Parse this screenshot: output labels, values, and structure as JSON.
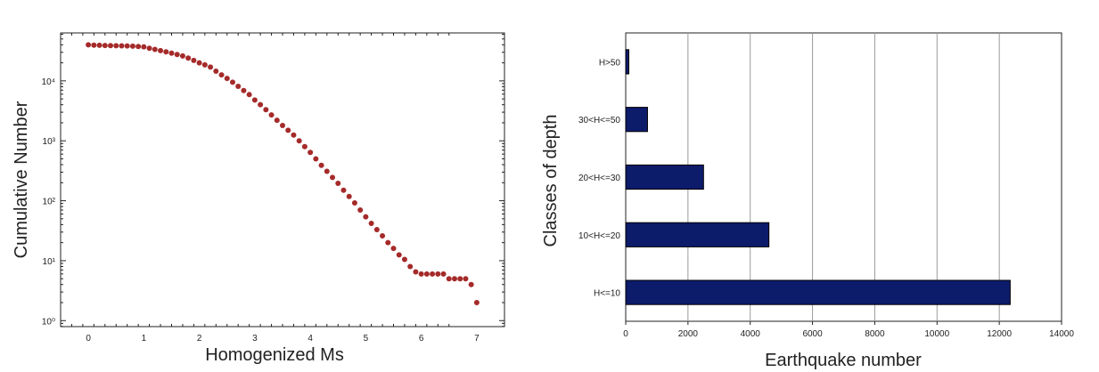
{
  "chart_data": [
    {
      "type": "scatter",
      "xlabel": "Homogenized Ms",
      "ylabel": "Cumulative Number",
      "xlim": [
        -0.5,
        7.5
      ],
      "ylim_log10": [
        -0.1,
        4.8
      ],
      "y_scale": "log",
      "xticks": [
        "0",
        "1",
        "2",
        "3",
        "4",
        "5",
        "6",
        "7"
      ],
      "ytick_labels": [
        "10⁰",
        "10¹",
        "10²",
        "10³",
        "10⁴"
      ],
      "grid": false,
      "marker_color": "#a52a2a",
      "points": [
        {
          "x": 0.0,
          "y": 40000
        },
        {
          "x": 0.1,
          "y": 39500
        },
        {
          "x": 0.2,
          "y": 39200
        },
        {
          "x": 0.3,
          "y": 39000
        },
        {
          "x": 0.4,
          "y": 38800
        },
        {
          "x": 0.5,
          "y": 38600
        },
        {
          "x": 0.6,
          "y": 38400
        },
        {
          "x": 0.7,
          "y": 38200
        },
        {
          "x": 0.8,
          "y": 38000
        },
        {
          "x": 0.9,
          "y": 37500
        },
        {
          "x": 1.0,
          "y": 37000
        },
        {
          "x": 1.1,
          "y": 35000
        },
        {
          "x": 1.2,
          "y": 33500
        },
        {
          "x": 1.3,
          "y": 32000
        },
        {
          "x": 1.4,
          "y": 30500
        },
        {
          "x": 1.5,
          "y": 29000
        },
        {
          "x": 1.6,
          "y": 27500
        },
        {
          "x": 1.7,
          "y": 26000
        },
        {
          "x": 1.8,
          "y": 24000
        },
        {
          "x": 1.9,
          "y": 22000
        },
        {
          "x": 2.0,
          "y": 20000
        },
        {
          "x": 2.1,
          "y": 18500
        },
        {
          "x": 2.2,
          "y": 17000
        },
        {
          "x": 2.3,
          "y": 14500
        },
        {
          "x": 2.4,
          "y": 12600
        },
        {
          "x": 2.5,
          "y": 11000
        },
        {
          "x": 2.6,
          "y": 9500
        },
        {
          "x": 2.7,
          "y": 8100
        },
        {
          "x": 2.8,
          "y": 6900
        },
        {
          "x": 2.9,
          "y": 5900
        },
        {
          "x": 3.0,
          "y": 4800
        },
        {
          "x": 3.1,
          "y": 4000
        },
        {
          "x": 3.2,
          "y": 3300
        },
        {
          "x": 3.3,
          "y": 2700
        },
        {
          "x": 3.4,
          "y": 2200
        },
        {
          "x": 3.5,
          "y": 1800
        },
        {
          "x": 3.6,
          "y": 1500
        },
        {
          "x": 3.7,
          "y": 1250
        },
        {
          "x": 3.8,
          "y": 1000
        },
        {
          "x": 3.9,
          "y": 800
        },
        {
          "x": 4.0,
          "y": 640
        },
        {
          "x": 4.1,
          "y": 500
        },
        {
          "x": 4.2,
          "y": 390
        },
        {
          "x": 4.3,
          "y": 310
        },
        {
          "x": 4.4,
          "y": 245
        },
        {
          "x": 4.5,
          "y": 195
        },
        {
          "x": 4.6,
          "y": 150
        },
        {
          "x": 4.7,
          "y": 118
        },
        {
          "x": 4.8,
          "y": 92
        },
        {
          "x": 4.9,
          "y": 70
        },
        {
          "x": 5.0,
          "y": 54
        },
        {
          "x": 5.1,
          "y": 42
        },
        {
          "x": 5.2,
          "y": 33
        },
        {
          "x": 5.3,
          "y": 26
        },
        {
          "x": 5.4,
          "y": 20
        },
        {
          "x": 5.5,
          "y": 16
        },
        {
          "x": 5.6,
          "y": 12.5
        },
        {
          "x": 5.7,
          "y": 10.5
        },
        {
          "x": 5.8,
          "y": 8
        },
        {
          "x": 5.9,
          "y": 6.5
        },
        {
          "x": 6.0,
          "y": 6
        },
        {
          "x": 6.1,
          "y": 6
        },
        {
          "x": 6.2,
          "y": 6
        },
        {
          "x": 6.3,
          "y": 6
        },
        {
          "x": 6.4,
          "y": 6
        },
        {
          "x": 6.5,
          "y": 5
        },
        {
          "x": 6.6,
          "y": 5
        },
        {
          "x": 6.7,
          "y": 5
        },
        {
          "x": 6.8,
          "y": 5
        },
        {
          "x": 6.9,
          "y": 4
        },
        {
          "x": 7.0,
          "y": 2
        }
      ]
    },
    {
      "type": "bar",
      "orientation": "horizontal",
      "xlabel": "Earthquake number",
      "ylabel": "Classes of depth",
      "xlim": [
        0,
        14000
      ],
      "xticks": [
        "0",
        "2000",
        "4000",
        "6000",
        "8000",
        "10000",
        "12000",
        "14000"
      ],
      "categories": [
        "H>50",
        "30<H<=50",
        "20<H<=30",
        "10<H<=20",
        "H<=10"
      ],
      "values": [
        100,
        700,
        2500,
        4600,
        12350
      ],
      "grid": "vertical",
      "bar_color": "#0d1b6b"
    }
  ]
}
